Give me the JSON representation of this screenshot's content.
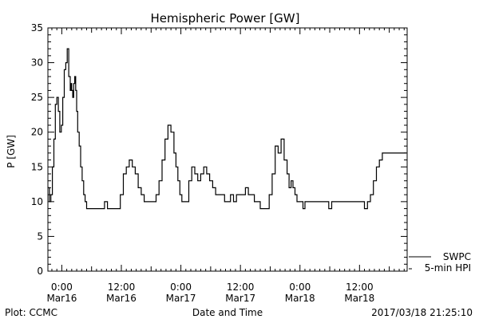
{
  "chart_data": {
    "type": "line",
    "title": "Hemispheric Power [GW]",
    "ylabel": "P [GW]",
    "xlabel": "Date and Time",
    "ylim": [
      0,
      35
    ],
    "yticks": [
      0,
      5,
      10,
      15,
      20,
      25,
      30,
      35
    ],
    "xlim_hours": [
      -2.8,
      69.6
    ],
    "xtick_hours": [
      0,
      12,
      24,
      36,
      48,
      60
    ],
    "xtick_labels": [
      {
        "time": "0:00",
        "date": "Mar16"
      },
      {
        "time": "12:00",
        "date": "Mar16"
      },
      {
        "time": "0:00",
        "date": "Mar17"
      },
      {
        "time": "12:00",
        "date": "Mar17"
      },
      {
        "time": "0:00",
        "date": "Mar18"
      },
      {
        "time": "12:00",
        "date": "Mar18"
      }
    ],
    "grid": false,
    "legend_position": "bottom-right",
    "series": [
      {
        "name": "SWPC",
        "color": "#000000",
        "x": [
          -2.8,
          -2.5,
          -2.2,
          -1.9,
          -1.6,
          -1.3,
          -1.0,
          -0.7,
          -0.4,
          -0.1,
          0.2,
          0.5,
          0.8,
          1.1,
          1.4,
          1.7,
          1.8,
          2.0,
          2.2,
          2.4,
          2.6,
          2.8,
          3.0,
          3.2,
          3.5,
          3.8,
          4.1,
          4.4,
          4.7,
          5.0,
          5.3,
          5.6,
          5.9,
          6.2,
          6.8,
          7.4,
          8.0,
          8.6,
          9.2,
          9.6,
          10.4,
          11.2,
          11.8,
          12.4,
          13.0,
          13.6,
          14.2,
          14.8,
          15.4,
          16.0,
          16.6,
          17.2,
          17.8,
          18.4,
          19.0,
          19.6,
          20.2,
          20.8,
          21.4,
          22.0,
          22.6,
          23.0,
          23.4,
          23.8,
          24.2,
          24.6,
          25.0,
          25.6,
          26.2,
          26.8,
          27.4,
          28.0,
          28.6,
          29.2,
          29.8,
          30.4,
          31.0,
          31.6,
          32.2,
          32.8,
          33.4,
          34.0,
          34.6,
          35.2,
          35.8,
          36.4,
          37.0,
          37.6,
          38.2,
          38.8,
          39.4,
          40.0,
          40.6,
          41.2,
          41.8,
          42.4,
          43.0,
          43.6,
          44.2,
          44.8,
          45.4,
          45.8,
          46.2,
          46.6,
          47.0,
          47.4,
          47.8,
          48.2,
          48.6,
          49.0,
          49.6,
          50.2,
          50.8,
          51.4,
          52.0,
          52.6,
          53.2,
          53.8,
          54.4,
          55.0,
          55.6,
          56.2,
          56.8,
          57.4,
          58.0,
          58.6,
          59.2,
          59.8,
          60.4,
          61.0,
          61.6,
          62.2,
          62.8,
          63.4,
          64.0,
          64.6,
          65.2,
          65.8,
          66.4,
          67.0,
          67.6,
          68.2,
          68.8,
          69.4
        ],
        "y": [
          12,
          10,
          11,
          15,
          19,
          24,
          25,
          23,
          20,
          21,
          25,
          29,
          30,
          32,
          28,
          26,
          27,
          26,
          25,
          27,
          28,
          26,
          23,
          20,
          18,
          15,
          13,
          11,
          10,
          9,
          9,
          9,
          9,
          9,
          9,
          9,
          9,
          10,
          9,
          9,
          9,
          9,
          11,
          14,
          15,
          16,
          15,
          14,
          12,
          11,
          10,
          10,
          10,
          10,
          11,
          13,
          16,
          19,
          21,
          20,
          17,
          15,
          13,
          11,
          10,
          10,
          10,
          13,
          15,
          14,
          13,
          14,
          15,
          14,
          13,
          12,
          11,
          11,
          11,
          10,
          10,
          11,
          10,
          11,
          11,
          11,
          12,
          11,
          11,
          10,
          10,
          9,
          9,
          9,
          11,
          14,
          18,
          17,
          19,
          16,
          14,
          12,
          13,
          12,
          11,
          10,
          10,
          10,
          9,
          10,
          10,
          10,
          10,
          10,
          10,
          10,
          10,
          9,
          10,
          10,
          10,
          10,
          10,
          10,
          10,
          10,
          10,
          10,
          10,
          9,
          10,
          11,
          13,
          15,
          16,
          17,
          17,
          17,
          17,
          17,
          17,
          17,
          17,
          17
        ],
        "values_note": ""
      }
    ],
    "legend": [
      {
        "label": "SWPC",
        "color": "#000000"
      },
      {
        "label": "5-min HPI",
        "color": "#000000"
      }
    ]
  },
  "footer": {
    "left": "Plot: CCMC",
    "right": "2017/03/18 21:25:10"
  }
}
